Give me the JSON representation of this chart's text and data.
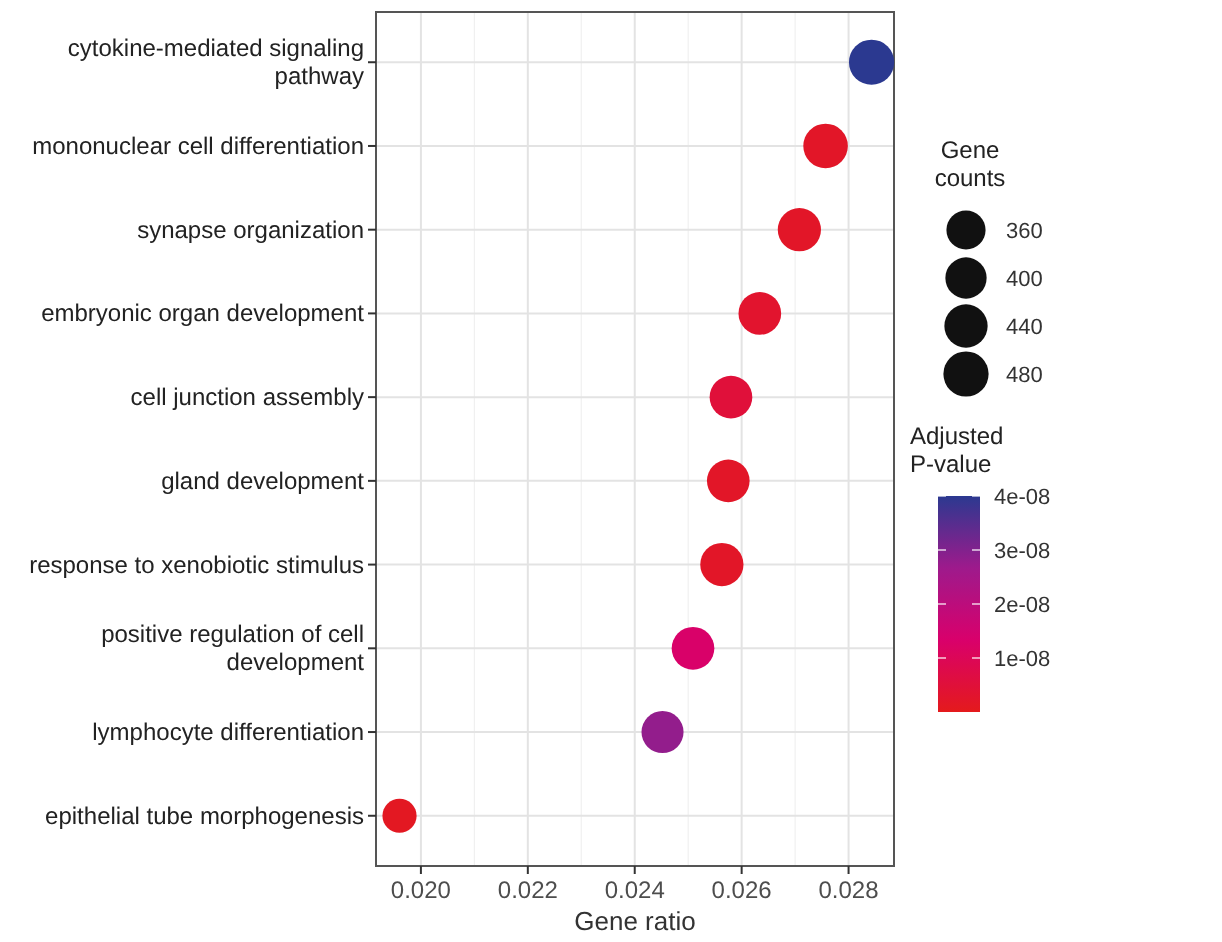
{
  "chart_data": {
    "type": "bubble",
    "orientation": "horizontal",
    "xlabel": "Gene ratio",
    "legend_title": "Gene counts",
    "clabel": "Adjusted P-value",
    "categories": [
      "cytokine-mediated signaling pathway",
      "mononuclear cell differentiation",
      "synapse organization",
      "embryonic organ development",
      "cell junction assembly",
      "gland development",
      "response to xenobiotic stimulus",
      "positive regulation of cell development",
      "lymphocyte differentiation",
      "epithelial tube morphogenesis"
    ],
    "values": [
      0.02843,
      0.02757,
      0.02708,
      0.02634,
      0.0258,
      0.02575,
      0.02563,
      0.02509,
      0.02452,
      0.0196
    ],
    "sizes": [
      480,
      467,
      439,
      428,
      428,
      428,
      439,
      428,
      416,
      275
    ],
    "cvalues": [
      4e-08,
      2e-09,
      2e-09,
      3e-09,
      5e-09,
      2e-09,
      2e-09,
      1.3e-08,
      2.8e-08,
      1e-09
    ],
    "size_legend": [
      360,
      400,
      440,
      480
    ],
    "clim": [
      0,
      4e-08
    ],
    "cticks": [
      {
        "value": 1e-08,
        "label": "1e-08"
      },
      {
        "value": 2e-08,
        "label": "2e-08"
      },
      {
        "value": 3e-08,
        "label": "3e-08"
      },
      {
        "value": 4e-08,
        "label": "4e-08"
      }
    ],
    "xlim": [
      0.01916,
      0.02885
    ],
    "xticks": [
      {
        "value": 0.02,
        "label": "0.020"
      },
      {
        "value": 0.022,
        "label": "0.022"
      },
      {
        "value": 0.024,
        "label": "0.024"
      },
      {
        "value": 0.026,
        "label": "0.026"
      },
      {
        "value": 0.028,
        "label": "0.028"
      }
    ],
    "grid": true
  }
}
